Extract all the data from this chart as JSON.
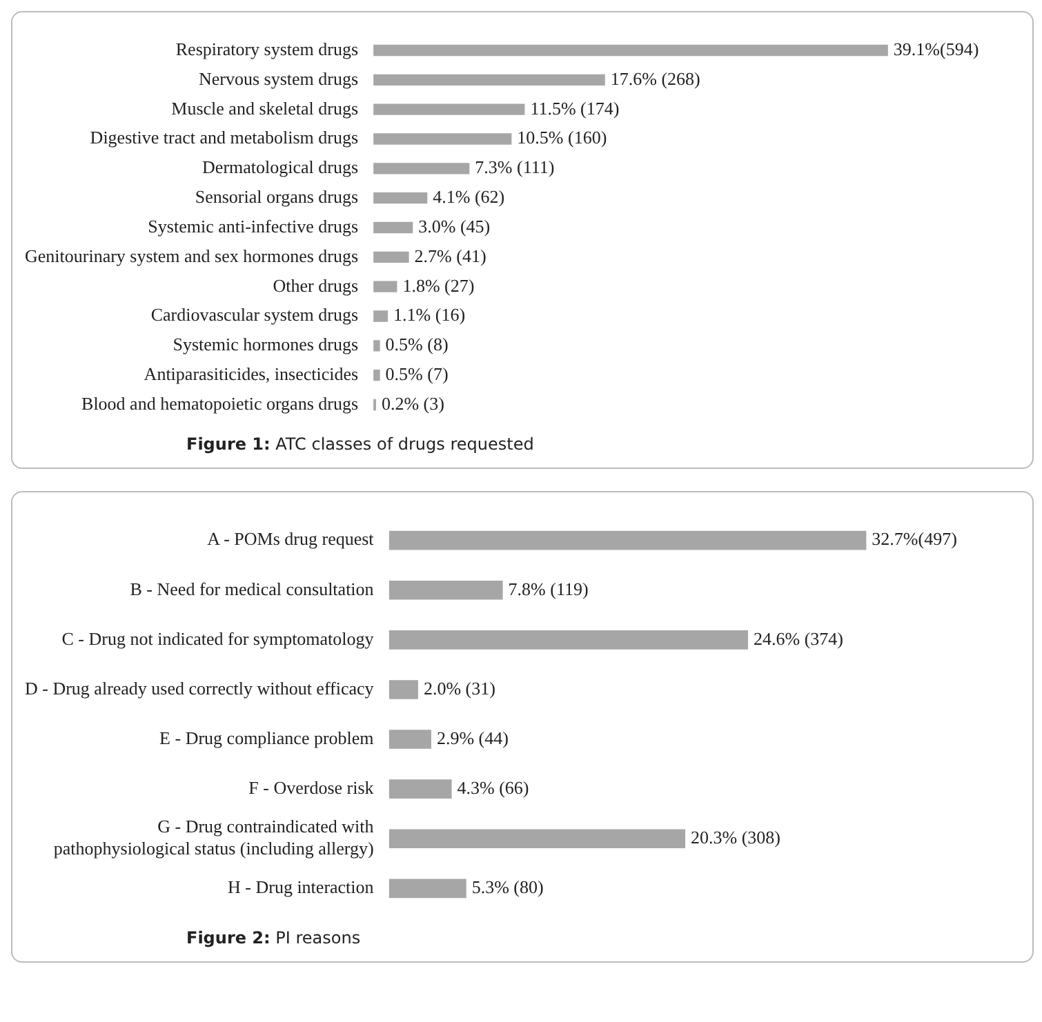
{
  "chart_data": [
    {
      "type": "bar",
      "orientation": "horizontal",
      "categories": [
        "Respiratory system drugs",
        "Nervous system drugs",
        "Muscle and skeletal drugs",
        "Digestive tract and metabolism drugs",
        "Dermatological drugs",
        "Sensorial organs drugs",
        "Systemic anti-infective drugs",
        "Genitourinary system and sex hormones drugs",
        "Other drugs",
        "Cardiovascular system drugs",
        "Systemic hormones drugs",
        "Antiparasiticides, insecticides",
        "Blood and hematopoietic organs drugs"
      ],
      "values": [
        39.1,
        17.6,
        11.5,
        10.5,
        7.3,
        4.1,
        3.0,
        2.7,
        1.8,
        1.1,
        0.5,
        0.5,
        0.2
      ],
      "value_labels": [
        "39.1%(594)",
        "17.6% (268)",
        "11.5% (174)",
        "10.5% (160)",
        "7.3% (111)",
        "4.1% (62)",
        "3.0% (45)",
        "2.7% (41)",
        "1.8% (27)",
        "1.1% (16)",
        "0.5% (8)",
        "0.5% (7)",
        "0.2% (3)"
      ],
      "color": "#a6a6a6",
      "legend": false,
      "annotations": [
        "Figure 1: ATC classes of drugs requested"
      ]
    },
    {
      "type": "bar",
      "orientation": "horizontal",
      "categories": [
        "A - POMs drug request",
        "B - Need for medical consultation",
        "C - Drug not indicated for symptomatology",
        "D - Drug already used correctly without efficacy",
        "E - Drug compliance problem",
        "F - Overdose risk",
        "G - Drug contraindicated with pathophysiological status (including allergy)",
        "H - Drug interaction"
      ],
      "values": [
        32.7,
        7.8,
        24.6,
        2.0,
        2.9,
        4.3,
        20.3,
        5.3
      ],
      "value_labels": [
        "32.7%(497)",
        "7.8% (119)",
        "24.6% (374)",
        "2.0% (31)",
        "2.9% (44)",
        "4.3% (66)",
        "20.3% (308)",
        "5.3% (80)"
      ],
      "color": "#a6a6a6",
      "legend": false,
      "annotations": [
        "Figure 2: PI reasons"
      ]
    }
  ]
}
